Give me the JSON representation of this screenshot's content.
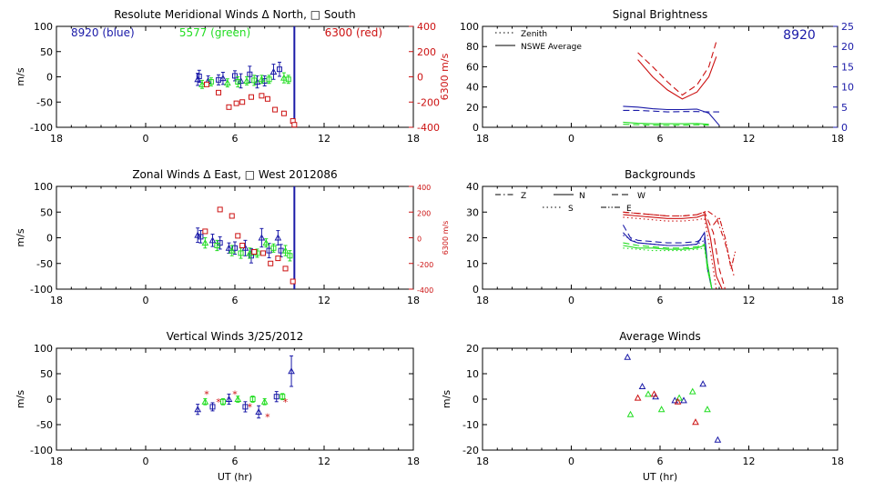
{
  "colors": {
    "axis": "#000000",
    "blue": "#1a1aa8",
    "green": "#22dd22",
    "red": "#cc1111"
  },
  "chart_data": [
    {
      "id": "meridional",
      "type": "scatter",
      "title": "Resolute Meridional Winds Δ North, □ South",
      "ylabel": "m/s",
      "right_ylabel": "6300 m/s",
      "xlim": [
        18,
        42
      ],
      "ylim": [
        -100,
        100
      ],
      "right_ylim": [
        -400,
        400
      ],
      "xticklabels": [
        "18",
        "0",
        "6",
        "12",
        "18"
      ],
      "yticks": [
        -100,
        -50,
        0,
        50,
        100
      ],
      "right_yticks": [
        -400,
        -200,
        0,
        200,
        400
      ],
      "legend_texts": [
        {
          "text": "8920 (blue)",
          "color": "blue"
        },
        {
          "text": "5577 (green)",
          "color": "green"
        },
        {
          "text": "6300 (red)",
          "color": "red"
        }
      ],
      "vline": {
        "x": 34.0,
        "color": "blue"
      },
      "blue": [
        [
          27.5,
          -5,
          12
        ],
        [
          27.6,
          1,
          12
        ],
        [
          28.2,
          -8,
          10
        ],
        [
          28.9,
          -6,
          10
        ],
        [
          29.2,
          -3,
          12
        ],
        [
          30.0,
          2,
          10
        ],
        [
          30.4,
          -8,
          14
        ],
        [
          31.0,
          5,
          16
        ],
        [
          31.5,
          -10,
          12
        ],
        [
          32.0,
          -8,
          10
        ],
        [
          32.6,
          10,
          15
        ],
        [
          33.0,
          15,
          14
        ]
      ],
      "green": [
        [
          27.8,
          -15,
          8
        ],
        [
          28.4,
          -10,
          8
        ],
        [
          29.5,
          -12,
          8
        ],
        [
          30.2,
          -10,
          10
        ],
        [
          30.8,
          -8,
          8
        ],
        [
          31.3,
          -7,
          10
        ],
        [
          31.8,
          -5,
          8
        ],
        [
          32.3,
          -5,
          8
        ],
        [
          33.3,
          -2,
          10
        ],
        [
          33.6,
          -5,
          8
        ]
      ],
      "red": [
        [
          28.1,
          -60
        ],
        [
          28.9,
          -125
        ],
        [
          29.6,
          -240
        ],
        [
          30.1,
          -210
        ],
        [
          30.5,
          -200
        ],
        [
          31.1,
          -160
        ],
        [
          31.8,
          -150
        ],
        [
          32.2,
          -175
        ],
        [
          32.7,
          -260
        ],
        [
          33.3,
          -290
        ],
        [
          33.9,
          -350
        ],
        [
          34.0,
          -380
        ]
      ]
    },
    {
      "id": "zonal",
      "type": "scatter",
      "title": "Zonal Winds Δ East, □ West 2012086",
      "ylabel": "m/s",
      "right_ylabel": "6300 m/s",
      "xlim": [
        18,
        42
      ],
      "ylim": [
        -100,
        100
      ],
      "right_ylim": [
        -400,
        400
      ],
      "xticklabels": [
        "18",
        "0",
        "6",
        "12",
        "18"
      ],
      "yticks": [
        -100,
        -50,
        0,
        50,
        100
      ],
      "right_yticks": [
        -400,
        -200,
        0,
        200,
        400
      ],
      "vline": {
        "x": 34.0,
        "color": "blue"
      },
      "blue": [
        [
          27.5,
          5,
          14
        ],
        [
          27.7,
          2,
          12
        ],
        [
          28.5,
          -5,
          12
        ],
        [
          29.0,
          -10,
          12
        ],
        [
          29.6,
          -20,
          10
        ],
        [
          30.0,
          -20,
          12
        ],
        [
          30.7,
          -20,
          15
        ],
        [
          31.1,
          -35,
          14
        ],
        [
          31.8,
          0,
          18
        ],
        [
          32.3,
          -25,
          14
        ],
        [
          32.9,
          0,
          14
        ],
        [
          33.1,
          -25,
          12
        ]
      ],
      "green": [
        [
          28.0,
          -10,
          10
        ],
        [
          28.8,
          -15,
          10
        ],
        [
          29.8,
          -25,
          10
        ],
        [
          30.4,
          -30,
          10
        ],
        [
          31.0,
          -30,
          10
        ],
        [
          31.5,
          -30,
          8
        ],
        [
          32.1,
          -10,
          8
        ],
        [
          32.6,
          -20,
          8
        ],
        [
          33.4,
          -25,
          10
        ],
        [
          33.7,
          -35,
          10
        ]
      ],
      "red": [
        [
          28.0,
          50
        ],
        [
          29.0,
          220
        ],
        [
          29.8,
          170
        ],
        [
          30.2,
          15
        ],
        [
          30.5,
          -60
        ],
        [
          31.3,
          -110
        ],
        [
          31.9,
          -120
        ],
        [
          32.4,
          -200
        ],
        [
          32.9,
          -160
        ],
        [
          33.4,
          -240
        ],
        [
          33.9,
          -340
        ]
      ]
    },
    {
      "id": "vertical",
      "type": "scatter",
      "title": "Vertical Winds 3/25/2012",
      "ylabel": "m/s",
      "xlabel": "UT (hr)",
      "xlim": [
        18,
        42
      ],
      "ylim": [
        -100,
        100
      ],
      "xticklabels": [
        "18",
        "0",
        "6",
        "12",
        "18"
      ],
      "yticks": [
        -100,
        -50,
        0,
        50,
        100
      ],
      "blue": [
        [
          27.5,
          -20,
          10
        ],
        [
          28.5,
          -15,
          8
        ],
        [
          29.6,
          0,
          10
        ],
        [
          30.7,
          -15,
          10
        ],
        [
          31.6,
          -25,
          12
        ],
        [
          32.8,
          5,
          10
        ],
        [
          33.8,
          55,
          30
        ]
      ],
      "green": [
        [
          28.0,
          -5,
          6
        ],
        [
          29.2,
          -5,
          6
        ],
        [
          30.2,
          0,
          6
        ],
        [
          31.2,
          0,
          6
        ],
        [
          32.0,
          -5,
          6
        ],
        [
          33.2,
          5,
          6
        ]
      ],
      "red": [
        [
          28.1,
          10
        ],
        [
          28.9,
          -5
        ],
        [
          30.0,
          10
        ],
        [
          31.0,
          -15
        ],
        [
          32.2,
          -35
        ],
        [
          33.4,
          -5
        ]
      ]
    },
    {
      "id": "brightness",
      "type": "line",
      "title": "Signal Brightness",
      "xlim": [
        18,
        42
      ],
      "ylim": [
        0,
        100
      ],
      "right_ylim": [
        0,
        25
      ],
      "xticklabels": [
        "18",
        "0",
        "6",
        "12",
        "18"
      ],
      "yticks": [
        0,
        20,
        40,
        60,
        80,
        100
      ],
      "right_yticks": [
        0,
        5,
        10,
        15,
        20,
        25
      ],
      "series_legend": [
        {
          "text": "Zenith",
          "style": "dotted"
        },
        {
          "text": "NSWE Average",
          "style": "solid"
        }
      ],
      "annotation": "8920",
      "lines": [
        {
          "color": "red",
          "dash": "dash",
          "axis": "left",
          "x": [
            28.5,
            29.5,
            30.5,
            31.5,
            32.5,
            33.3,
            33.8
          ],
          "y": [
            74,
            60,
            45,
            32,
            42,
            60,
            85
          ]
        },
        {
          "color": "red",
          "dash": "solid",
          "axis": "left",
          "x": [
            28.5,
            29.5,
            30.5,
            31.5,
            32.5,
            33.3,
            33.8
          ],
          "y": [
            67,
            50,
            37,
            28,
            35,
            50,
            70
          ]
        },
        {
          "color": "blue",
          "dash": "solid",
          "axis": "right",
          "x": [
            27.5,
            28.5,
            29.5,
            30.5,
            31.5,
            32.5,
            33.3,
            34.0
          ],
          "y": [
            5.2,
            5.0,
            4.6,
            4.4,
            4.4,
            4.5,
            3.5,
            0.5
          ]
        },
        {
          "color": "blue",
          "dash": "dash",
          "axis": "right",
          "x": [
            27.5,
            28.5,
            29.5,
            30.5,
            31.5,
            32.5,
            33.3,
            34.0
          ],
          "y": [
            4.2,
            4.2,
            4.0,
            3.8,
            3.9,
            3.9,
            3.8,
            3.8
          ]
        },
        {
          "color": "green",
          "dash": "solid",
          "axis": "left",
          "x": [
            27.5,
            28.5,
            29.5,
            30.5,
            31.5,
            32.5,
            33.3
          ],
          "y": [
            5,
            4,
            3.5,
            3.5,
            3.5,
            3.8,
            3
          ]
        },
        {
          "color": "green",
          "dash": "dash",
          "axis": "left",
          "x": [
            27.5,
            28.5,
            29.5,
            30.5,
            31.5,
            32.5,
            33.3
          ],
          "y": [
            3,
            2.5,
            2.2,
            2,
            2.2,
            2.5,
            2
          ]
        }
      ]
    },
    {
      "id": "backgrounds",
      "type": "line",
      "title": "Backgrounds",
      "xlim": [
        18,
        42
      ],
      "ylim": [
        0,
        40
      ],
      "xticklabels": [
        "18",
        "0",
        "6",
        "12",
        "18"
      ],
      "yticks": [
        0,
        10,
        20,
        30,
        40
      ],
      "series_legend": [
        {
          "text": "Z",
          "style": "dashdot"
        },
        {
          "text": "N",
          "style": "solid"
        },
        {
          "text": "W",
          "style": "dash"
        },
        {
          "text": "S",
          "style": "dotted"
        },
        {
          "text": "E",
          "style": "dashdotdot"
        }
      ],
      "lines": [
        {
          "color": "red",
          "dash": "solid",
          "x": [
            27.5,
            28.5,
            29.5,
            30.5,
            31.5,
            32.5,
            33.0,
            33.4,
            33.8,
            34.2
          ],
          "y": [
            29,
            28.5,
            28,
            27.5,
            27.5,
            28,
            29,
            20,
            5,
            0
          ]
        },
        {
          "color": "red",
          "dash": "dash",
          "x": [
            27.5,
            28.5,
            29.5,
            30.5,
            31.5,
            32.5,
            33.0,
            33.6,
            34.0,
            34.4
          ],
          "y": [
            30,
            29.5,
            29,
            28.5,
            28.5,
            29,
            30,
            22,
            8,
            0
          ]
        },
        {
          "color": "red",
          "dash": "dashdot",
          "x": [
            27.5,
            28.5,
            29.5,
            30.5,
            31.5,
            32.5,
            33.2,
            33.8,
            34.4,
            35.0
          ],
          "y": [
            30,
            29.5,
            29,
            28.5,
            28.5,
            29,
            30.5,
            28,
            18,
            5
          ]
        },
        {
          "color": "red",
          "dash": "dot",
          "x": [
            27.5,
            28.5,
            29.5,
            30.5,
            31.5,
            32.5,
            33.0,
            33.4,
            33.8
          ],
          "y": [
            28,
            27.5,
            27,
            26.5,
            26.5,
            27,
            27.5,
            15,
            0
          ]
        },
        {
          "color": "red",
          "dash": "dashdotdot",
          "x": [
            33.6,
            34.0,
            34.4,
            34.8,
            35.1
          ],
          "y": [
            25,
            28,
            20,
            8,
            15
          ]
        },
        {
          "color": "blue",
          "dash": "solid",
          "x": [
            27.5,
            28.0,
            28.5,
            29.5,
            30.5,
            31.5,
            32.5,
            33.0,
            33.2,
            33.5
          ],
          "y": [
            22,
            19,
            18,
            17.5,
            17,
            17,
            17.5,
            22,
            10,
            0
          ]
        },
        {
          "color": "blue",
          "dash": "dash",
          "x": [
            27.5,
            28.0,
            28.5,
            29.5,
            30.5,
            31.5,
            32.5,
            33.0,
            33.2,
            33.5
          ],
          "y": [
            25,
            20,
            19,
            18.5,
            18,
            18,
            18.5,
            20,
            8,
            0
          ]
        },
        {
          "color": "blue",
          "dash": "dot",
          "x": [
            27.5,
            28.5,
            29.5,
            30.5,
            31.5,
            32.5,
            33.0,
            33.3
          ],
          "y": [
            21,
            18,
            17.5,
            17,
            17,
            17.5,
            19,
            5
          ]
        },
        {
          "color": "green",
          "dash": "solid",
          "x": [
            27.5,
            28.5,
            29.5,
            30.5,
            31.5,
            32.5,
            33.0,
            33.2,
            33.5
          ],
          "y": [
            17,
            16,
            16,
            15.5,
            15.5,
            16,
            17,
            10,
            0
          ]
        },
        {
          "color": "green",
          "dash": "dash",
          "x": [
            27.5,
            28.5,
            29.5,
            30.5,
            31.5,
            32.5,
            33.0,
            33.2,
            33.5
          ],
          "y": [
            18,
            17,
            16.5,
            16,
            16,
            16.5,
            17.5,
            8,
            0
          ]
        },
        {
          "color": "green",
          "dash": "dot",
          "x": [
            27.5,
            28.5,
            29.5,
            30.5,
            31.5,
            32.5,
            33.0,
            33.3
          ],
          "y": [
            16,
            15.5,
            15,
            15,
            15,
            15.5,
            16,
            5
          ]
        }
      ]
    },
    {
      "id": "average",
      "type": "scatter",
      "title": "Average Winds",
      "ylabel": "m/s",
      "xlabel": "UT (hr)",
      "xlim": [
        18,
        42
      ],
      "ylim": [
        -20,
        20
      ],
      "xticklabels": [
        "18",
        "0",
        "6",
        "12",
        "18"
      ],
      "yticks": [
        -20,
        -10,
        0,
        10,
        20
      ],
      "blue": [
        [
          27.8,
          16.5
        ],
        [
          28.8,
          5
        ],
        [
          29.7,
          1
        ],
        [
          31.0,
          -0.5
        ],
        [
          31.6,
          -0.5
        ],
        [
          32.9,
          6
        ],
        [
          33.9,
          -16
        ]
      ],
      "green": [
        [
          28.0,
          -6
        ],
        [
          29.2,
          2
        ],
        [
          30.1,
          -4
        ],
        [
          31.3,
          0.5
        ],
        [
          32.2,
          3
        ],
        [
          33.2,
          -4
        ]
      ],
      "red": [
        [
          28.5,
          0.5
        ],
        [
          29.6,
          2
        ],
        [
          31.2,
          -1
        ],
        [
          32.4,
          -9
        ]
      ]
    }
  ]
}
